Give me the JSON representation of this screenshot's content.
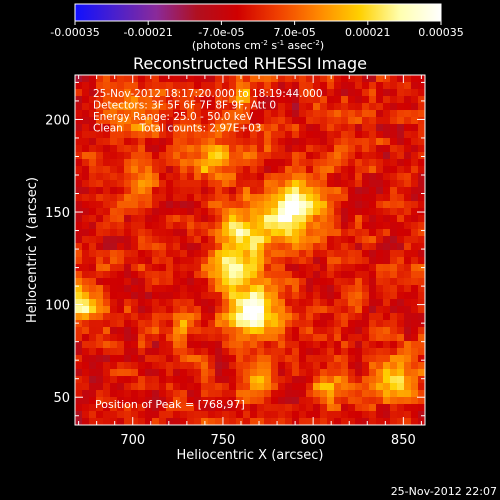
{
  "colorbar": {
    "tick_labels": [
      "-0.00035",
      "-0.00021",
      "-7.0e-05",
      "7.0e-05",
      "0.00021",
      "0.00035"
    ],
    "units": {
      "prefix": "(photons cm",
      "sup1": "-2",
      "mid1": " s",
      "sup2": "-1",
      "mid2": " asec",
      "sup3": "-2",
      "suffix": ")"
    },
    "colors": [
      "#1010ff",
      "#4a20cc",
      "#8a2a9a",
      "#b01020",
      "#d00000",
      "#f04000",
      "#ff8800",
      "#ffd000",
      "#ffffb0",
      "#ffffff"
    ]
  },
  "chart_data": {
    "type": "heatmap",
    "title": "Reconstructed RHESSI Image",
    "xlabel": "Heliocentric X (arcsec)",
    "ylabel": "Heliocentric Y (arcsec)",
    "xlim": [
      668,
      862
    ],
    "ylim": [
      35,
      224
    ],
    "x_ticks": [
      "700",
      "750",
      "800",
      "850"
    ],
    "x_tick_values": [
      700,
      750,
      800,
      850
    ],
    "y_ticks": [
      "50",
      "100",
      "150",
      "200"
    ],
    "y_tick_values": [
      50,
      100,
      150,
      200
    ],
    "info_lines": [
      "25-Nov-2012 18:17:20.000 to 18:19:44.000",
      "Detectors: 3F 5F 6F 7F 8F 9F, Att 0",
      "Energy Range: 25.0 - 50.0 keV",
      "Clean     Total counts: 2.97E+03"
    ],
    "peak_label": "Position of Peak = [768,97]",
    "peak": [
      768,
      97
    ],
    "sources": [
      {
        "x": 768,
        "y": 97,
        "intensity": 1.0,
        "sigma": 10
      },
      {
        "x": 790,
        "y": 152,
        "intensity": 0.9,
        "sigma": 11
      },
      {
        "x": 762,
        "y": 138,
        "intensity": 0.65,
        "sigma": 12
      },
      {
        "x": 755,
        "y": 120,
        "intensity": 0.5,
        "sigma": 9
      },
      {
        "x": 672,
        "y": 100,
        "intensity": 0.75,
        "sigma": 7
      },
      {
        "x": 745,
        "y": 180,
        "intensity": 0.5,
        "sigma": 10
      },
      {
        "x": 700,
        "y": 200,
        "intensity": 0.4,
        "sigma": 10
      },
      {
        "x": 705,
        "y": 160,
        "intensity": 0.3,
        "sigma": 8
      },
      {
        "x": 808,
        "y": 55,
        "intensity": 0.55,
        "sigma": 7
      },
      {
        "x": 770,
        "y": 60,
        "intensity": 0.45,
        "sigma": 7
      },
      {
        "x": 848,
        "y": 60,
        "intensity": 0.65,
        "sigma": 8
      },
      {
        "x": 730,
        "y": 90,
        "intensity": 0.35,
        "sigma": 7
      },
      {
        "x": 820,
        "y": 185,
        "intensity": 0.3,
        "sigma": 8
      },
      {
        "x": 760,
        "y": 215,
        "intensity": 0.35,
        "sigma": 6
      }
    ]
  },
  "footer": {
    "timestamp": "25-Nov-2012 22:07"
  }
}
